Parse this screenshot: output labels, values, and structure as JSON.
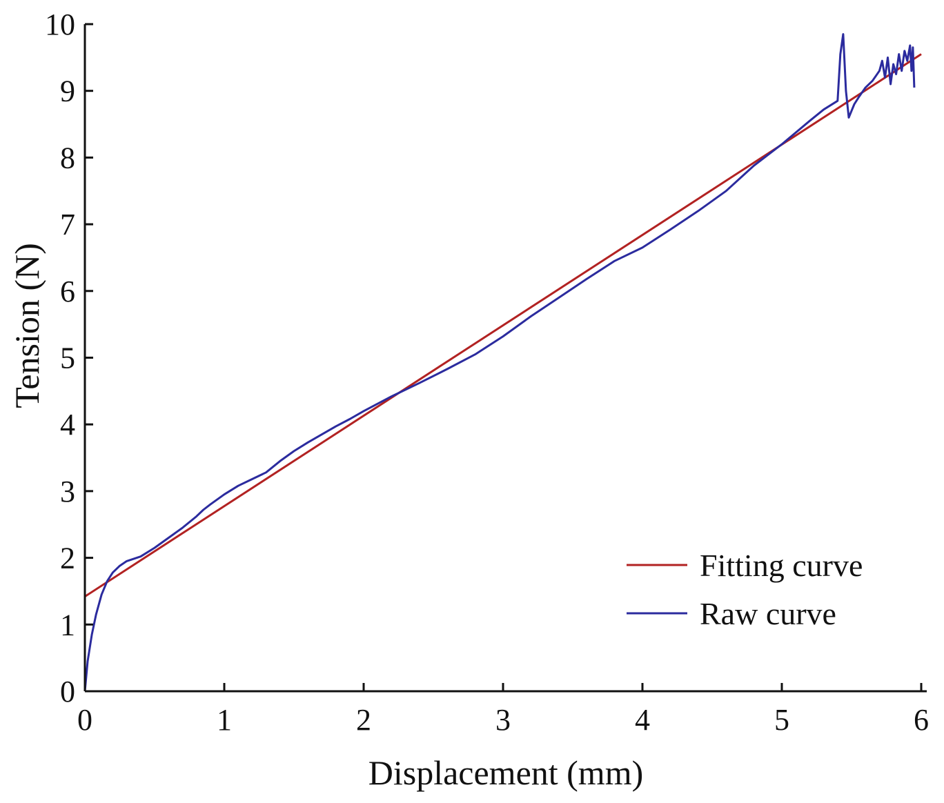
{
  "chart_data": {
    "type": "line",
    "title": "",
    "xlabel": "Displacement (mm)",
    "ylabel": "Tension (N)",
    "xlim": [
      0,
      6
    ],
    "ylim": [
      0,
      10
    ],
    "xticks": [
      0,
      1,
      2,
      3,
      4,
      5,
      6
    ],
    "yticks": [
      0,
      1,
      2,
      3,
      4,
      5,
      6,
      7,
      8,
      9,
      10
    ],
    "grid": false,
    "legend_position": "bottom-right",
    "series": [
      {
        "name": "Fitting curve",
        "color": "#b22222",
        "x": [
          0,
          6
        ],
        "y": [
          1.42,
          9.55
        ]
      },
      {
        "name": "Raw curve",
        "color": "#2b2b9e",
        "x": [
          0.0,
          0.02,
          0.05,
          0.08,
          0.12,
          0.16,
          0.2,
          0.25,
          0.3,
          0.4,
          0.5,
          0.6,
          0.7,
          0.8,
          0.85,
          0.9,
          1.0,
          1.1,
          1.2,
          1.3,
          1.4,
          1.5,
          1.6,
          1.7,
          1.8,
          1.9,
          2.0,
          2.2,
          2.4,
          2.6,
          2.8,
          3.0,
          3.2,
          3.4,
          3.6,
          3.8,
          4.0,
          4.2,
          4.4,
          4.6,
          4.8,
          5.0,
          5.2,
          5.3,
          5.4,
          5.42,
          5.44,
          5.46,
          5.48,
          5.5,
          5.52,
          5.55,
          5.6,
          5.65,
          5.7,
          5.72,
          5.74,
          5.76,
          5.78,
          5.8,
          5.82,
          5.84,
          5.86,
          5.88,
          5.9,
          5.92,
          5.93,
          5.94,
          5.95
        ],
        "y": [
          0.0,
          0.45,
          0.85,
          1.15,
          1.45,
          1.65,
          1.78,
          1.88,
          1.95,
          2.02,
          2.15,
          2.3,
          2.45,
          2.62,
          2.72,
          2.8,
          2.95,
          3.08,
          3.18,
          3.28,
          3.45,
          3.6,
          3.73,
          3.85,
          3.97,
          4.08,
          4.2,
          4.42,
          4.62,
          4.83,
          5.05,
          5.32,
          5.62,
          5.9,
          6.18,
          6.45,
          6.65,
          6.92,
          7.2,
          7.5,
          7.88,
          8.2,
          8.55,
          8.72,
          8.85,
          9.55,
          9.85,
          9.0,
          8.6,
          8.7,
          8.8,
          8.9,
          9.05,
          9.15,
          9.3,
          9.45,
          9.2,
          9.5,
          9.1,
          9.4,
          9.25,
          9.55,
          9.3,
          9.6,
          9.45,
          9.68,
          9.3,
          9.65,
          9.05
        ]
      }
    ]
  }
}
